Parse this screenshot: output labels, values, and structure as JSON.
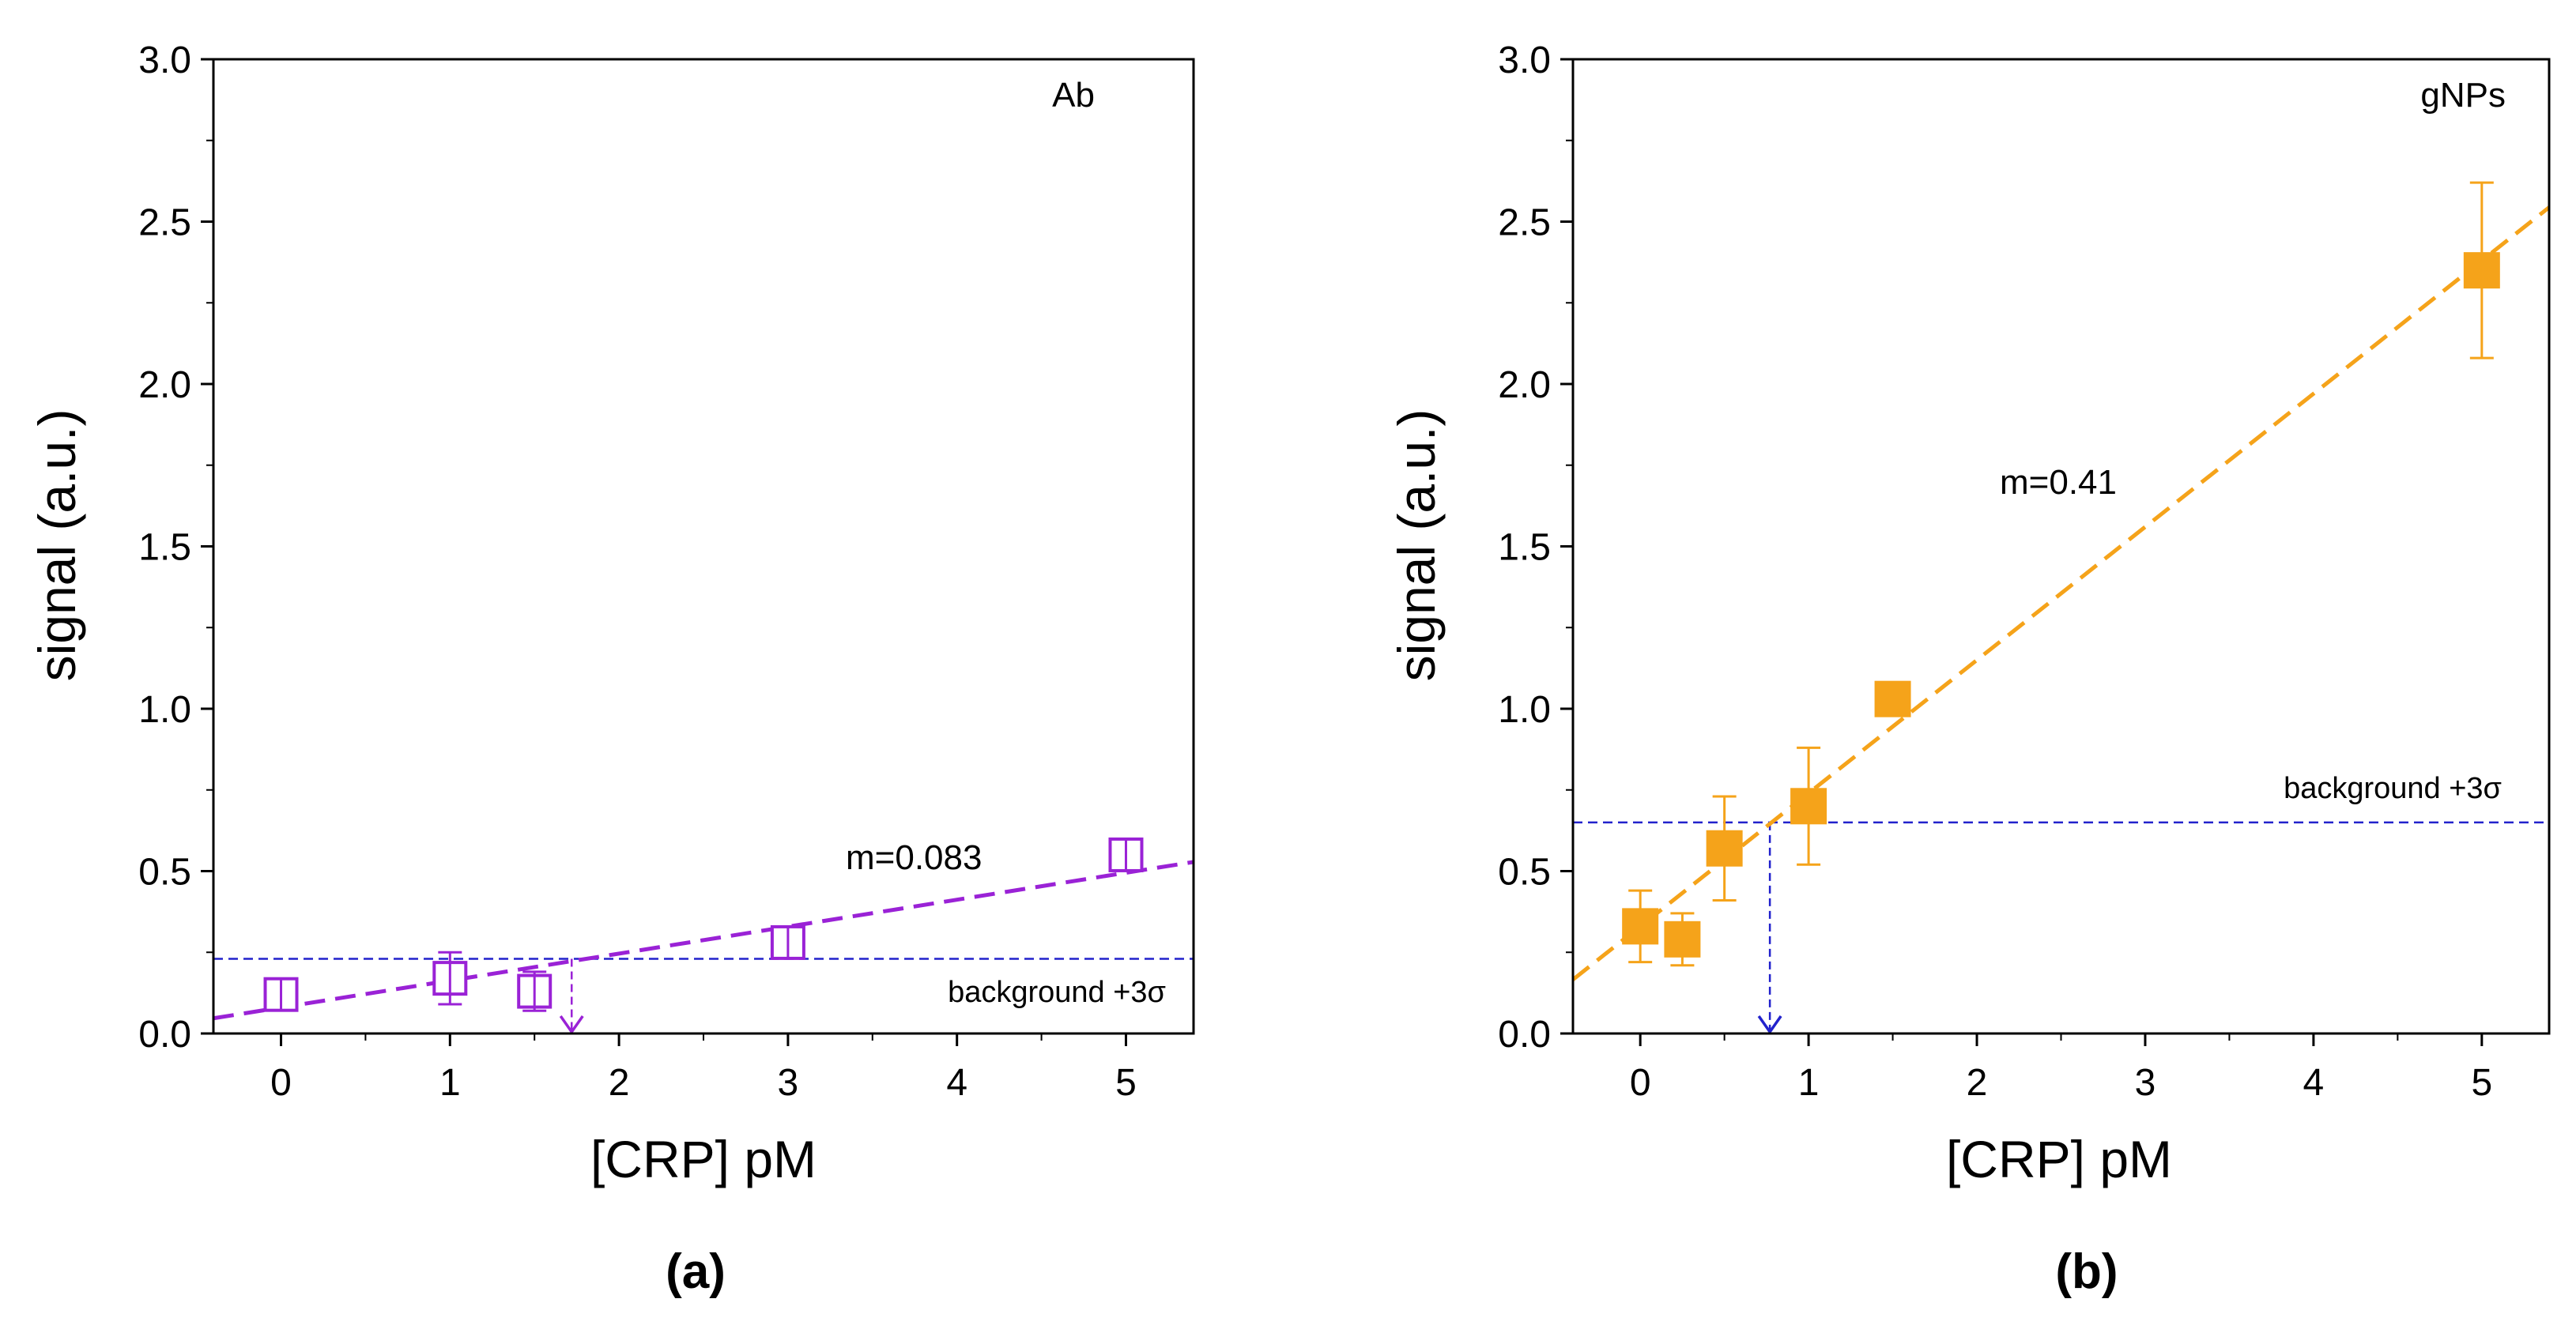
{
  "figure": {
    "panel_a_caption": "(a)",
    "panel_b_caption": "(b)"
  },
  "chart_data": [
    {
      "type": "scatter",
      "panel": "(a)",
      "corner_label": "Ab",
      "xlabel": "[CRP] pM",
      "ylabel": "signal (a.u.)",
      "xlim": [
        -0.4,
        5.4
      ],
      "ylim": [
        0.0,
        3.0
      ],
      "xticks": [
        0,
        1,
        2,
        3,
        4,
        5
      ],
      "yticks": [
        0.0,
        0.5,
        1.0,
        1.5,
        2.0,
        2.5,
        3.0
      ],
      "ytick_labels": [
        "0.0",
        "0.5",
        "1.0",
        "1.5",
        "2.0",
        "2.5",
        "3.0"
      ],
      "marker": "open-square",
      "color": "#9a22d6",
      "series": [
        {
          "name": "Ab",
          "x": [
            0,
            1,
            1.5,
            3,
            5
          ],
          "y": [
            0.12,
            0.17,
            0.13,
            0.28,
            0.55
          ],
          "err": [
            0.03,
            0.08,
            0.06,
            0.03,
            0.02
          ]
        }
      ],
      "fit": {
        "slope": 0.083,
        "intercept": 0.08,
        "label": "m=0.083"
      },
      "background": {
        "y": 0.23,
        "label": "background +3σ",
        "color": "#2222cc"
      },
      "lod": {
        "x": 1.72
      }
    },
    {
      "type": "scatter",
      "panel": "(b)",
      "corner_label": "gNPs",
      "xlabel": "[CRP] pM",
      "ylabel": "signal (a.u.)",
      "xlim": [
        -0.4,
        5.4
      ],
      "ylim": [
        0.0,
        3.0
      ],
      "xticks": [
        0,
        1,
        2,
        3,
        4,
        5
      ],
      "yticks": [
        0.0,
        0.5,
        1.0,
        1.5,
        2.0,
        2.5,
        3.0
      ],
      "ytick_labels": [
        "0.0",
        "0.5",
        "1.0",
        "1.5",
        "2.0",
        "2.5",
        "3.0"
      ],
      "marker": "filled-square",
      "color": "#f5a31a",
      "series": [
        {
          "name": "gNPs",
          "x": [
            0,
            0.25,
            0.5,
            1,
            1.5,
            5
          ],
          "y": [
            0.33,
            0.29,
            0.57,
            0.7,
            1.03,
            2.35
          ],
          "err": [
            0.11,
            0.08,
            0.16,
            0.18,
            0.05,
            0.27
          ]
        }
      ],
      "fit": {
        "slope": 0.41,
        "intercept": 0.33,
        "label": "m=0.41"
      },
      "background": {
        "y": 0.65,
        "label": "background +3σ",
        "color": "#2222cc"
      },
      "lod": {
        "x": 0.77
      }
    }
  ]
}
